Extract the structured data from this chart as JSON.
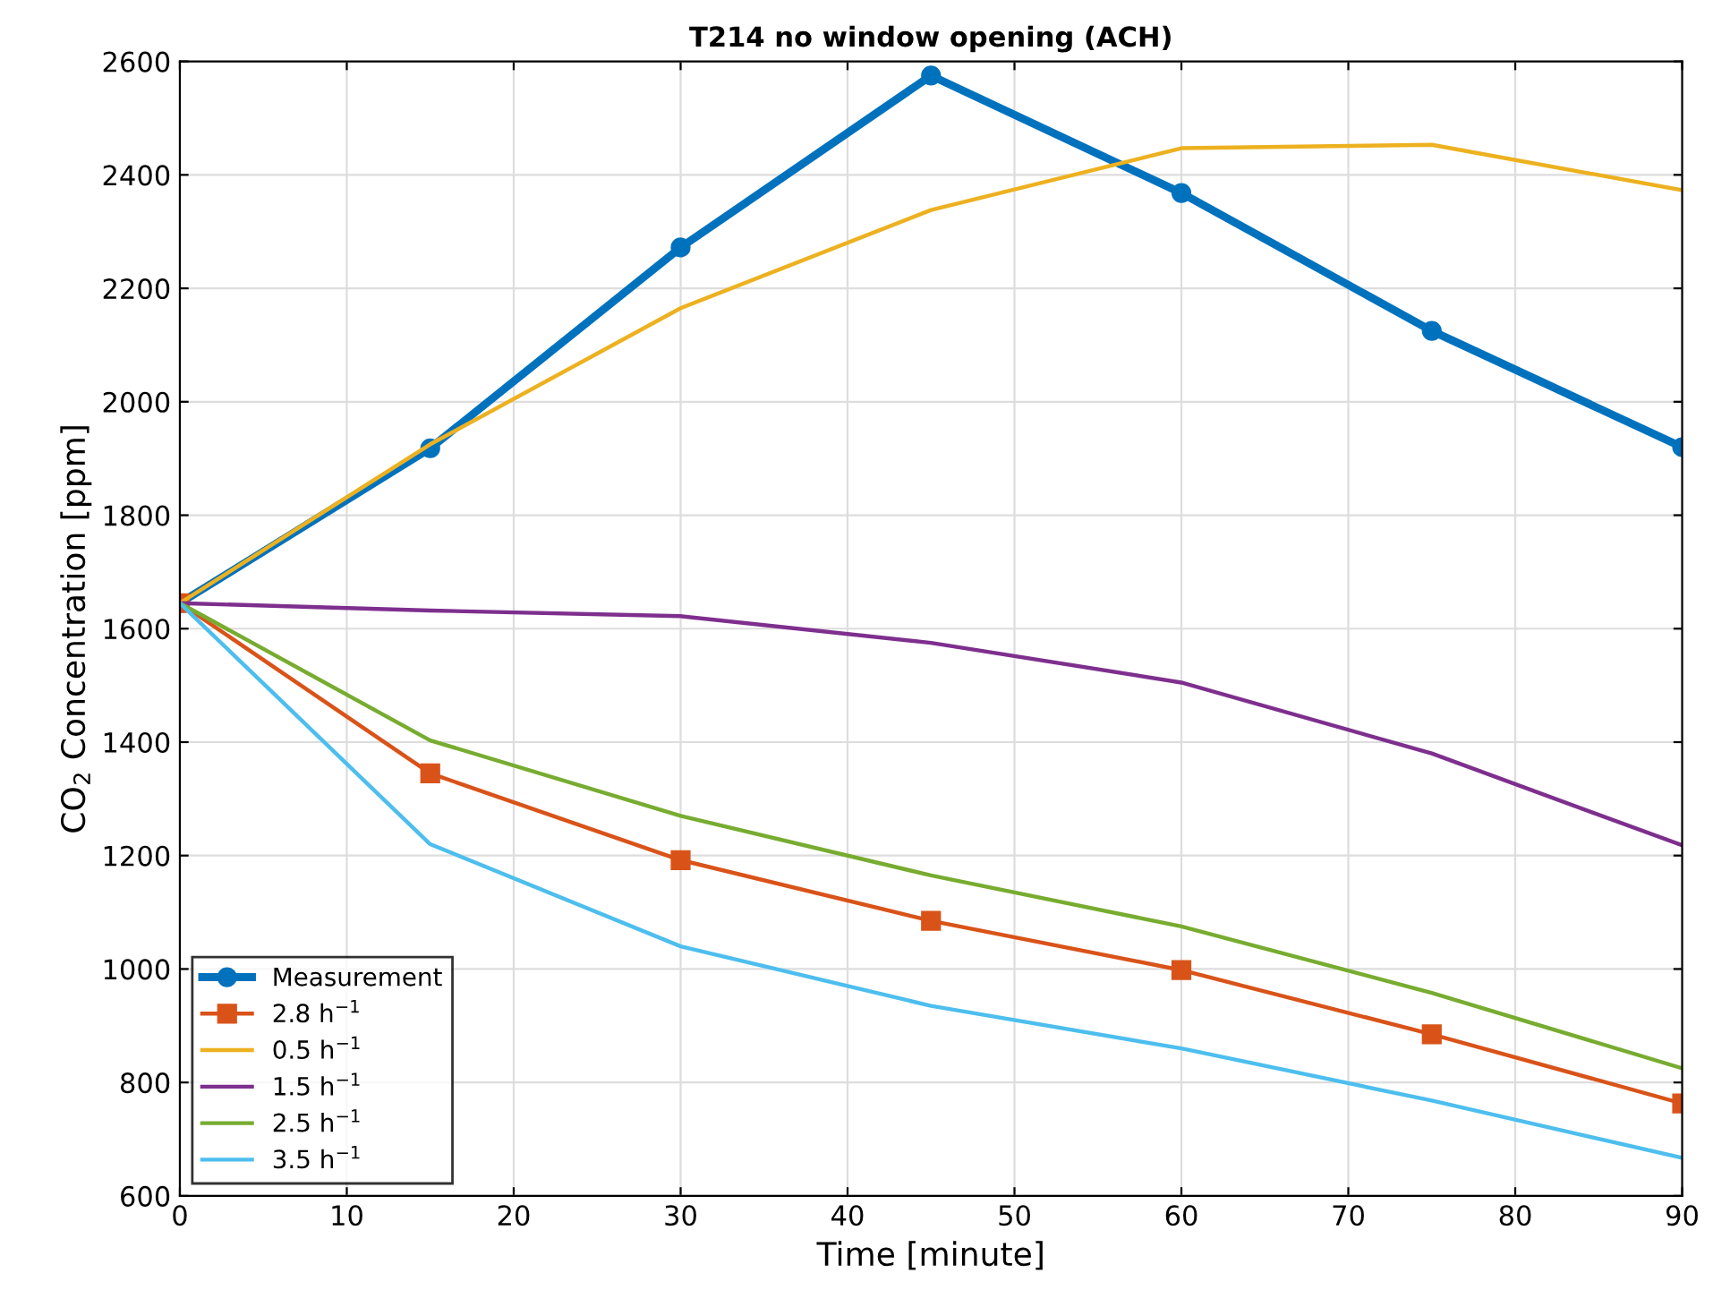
{
  "chart_data": {
    "type": "line",
    "title": "T214 no window opening (ACH)",
    "xlabel": "Time [minute]",
    "ylabel": "CO$_{2}$ Concentration [ppm]",
    "x": [
      0,
      15,
      30,
      45,
      60,
      75,
      90
    ],
    "series": [
      {
        "name": "Measurement",
        "color": "#0072bd",
        "marker": "circle",
        "values": [
          1645,
          1918,
          2272,
          2575,
          2368,
          2125,
          1920
        ]
      },
      {
        "name": "2.8 h$^{−1}$",
        "color": "#d95319",
        "marker": "square",
        "values": [
          1645,
          1345,
          1192,
          1085,
          998,
          885,
          763
        ]
      },
      {
        "name": "0.5 h$^{−1}$",
        "color": "#edb120",
        "marker": "none",
        "values": [
          1645,
          1925,
          2165,
          2338,
          2447,
          2453,
          2373
        ]
      },
      {
        "name": "1.5 h$^{−1}$",
        "color": "#7e2f8e",
        "marker": "none",
        "values": [
          1645,
          1632,
          1622,
          1575,
          1505,
          1380,
          1218
        ]
      },
      {
        "name": "2.5 h$^{−1}$",
        "color": "#77ac30",
        "marker": "none",
        "values": [
          1645,
          1403,
          1270,
          1165,
          1075,
          958,
          825
        ]
      },
      {
        "name": "3.5 h$^{−1}$",
        "color": "#4dbeee",
        "marker": "none",
        "values": [
          1645,
          1220,
          1040,
          935,
          860,
          768,
          667
        ]
      }
    ],
    "xlim": [
      0,
      90
    ],
    "xticks": [
      0,
      10,
      20,
      30,
      40,
      50,
      60,
      70,
      80,
      90
    ],
    "ylim": [
      600,
      2600
    ],
    "yticks": [
      600,
      800,
      1000,
      1200,
      1400,
      1600,
      1800,
      2000,
      2200,
      2400,
      2600
    ],
    "grid": true,
    "legend": "bottom left",
    "line_style": "solid"
  }
}
